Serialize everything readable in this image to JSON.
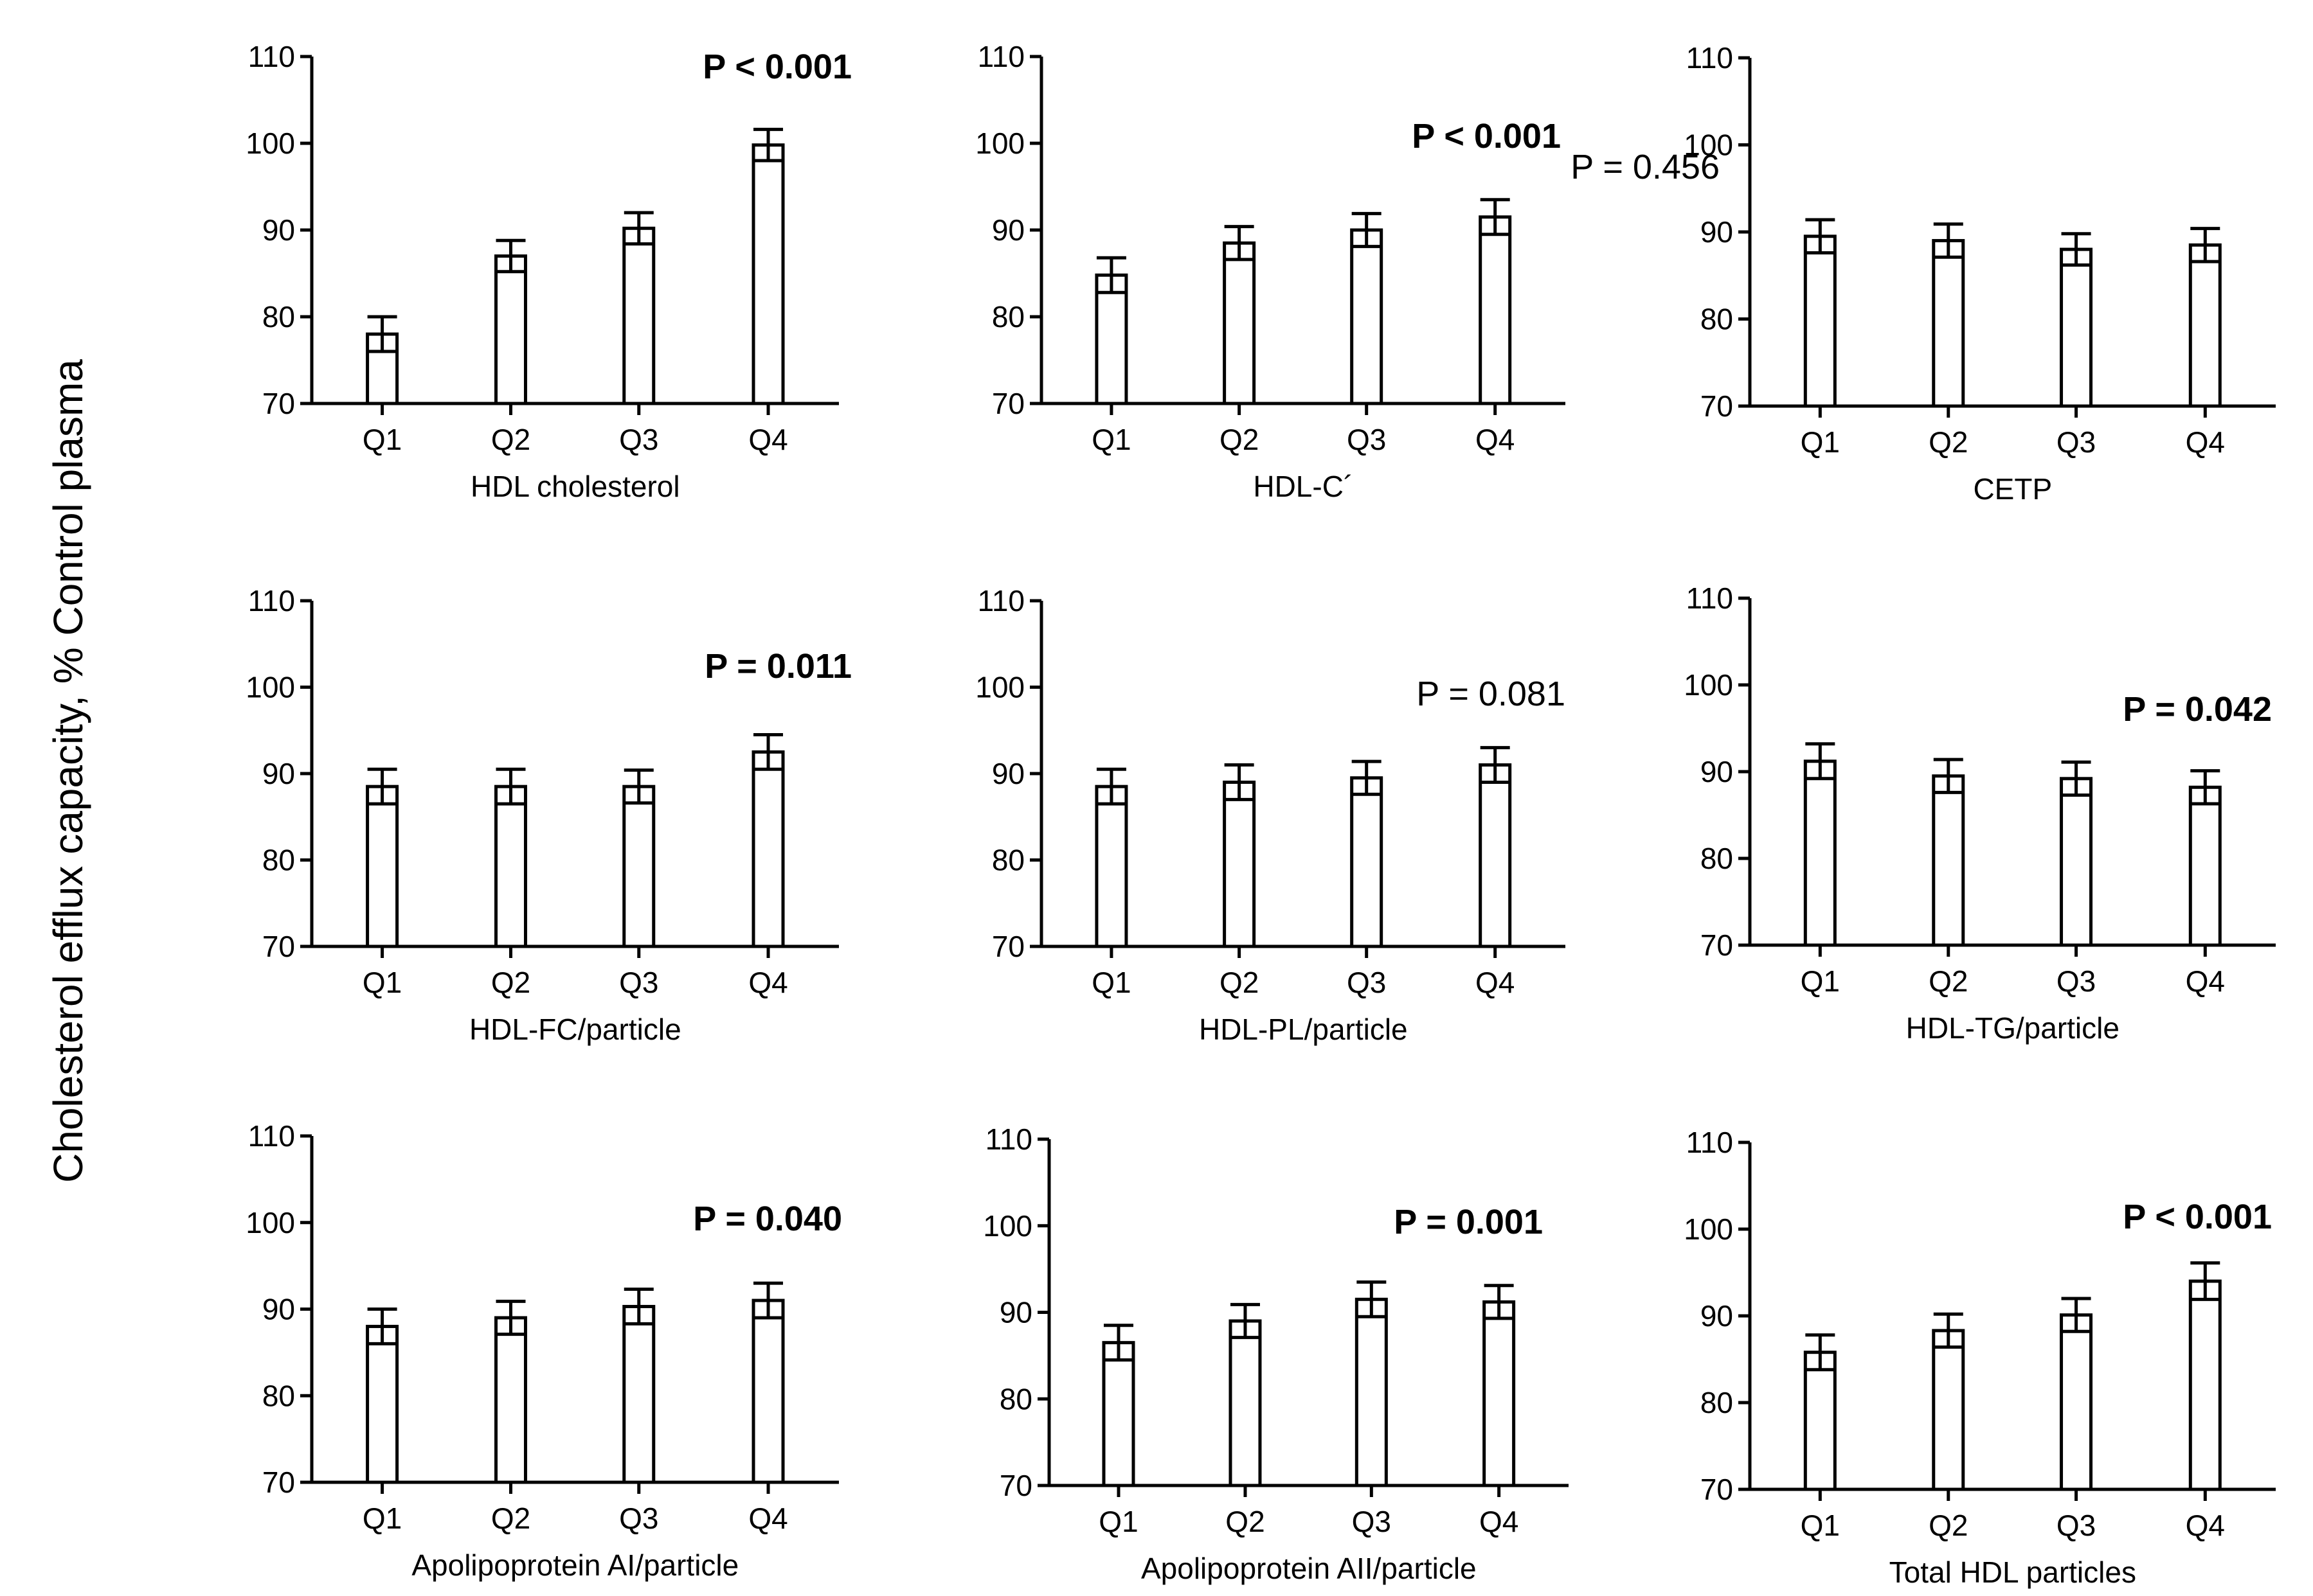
{
  "figure": {
    "ylabel": "Cholesterol efflux capacity, % Control plasma"
  },
  "chart_data": [
    {
      "type": "bar",
      "title": "",
      "xlabel": "HDL cholesterol",
      "ylabel": "",
      "ylim": [
        70,
        110
      ],
      "yticks": [
        70,
        80,
        90,
        100,
        110
      ],
      "categories": [
        "Q1",
        "Q2",
        "Q3",
        "Q4"
      ],
      "values": [
        78,
        87,
        90.2,
        99.8
      ],
      "errors": [
        2.0,
        1.8,
        1.8,
        1.8
      ],
      "annotation": "P < 0.001",
      "annotation_bold": true
    },
    {
      "type": "bar",
      "title": "",
      "xlabel": "HDL-C´",
      "ylabel": "",
      "ylim": [
        70,
        110
      ],
      "yticks": [
        70,
        80,
        90,
        100,
        110
      ],
      "categories": [
        "Q1",
        "Q2",
        "Q3",
        "Q4"
      ],
      "values": [
        84.8,
        88.5,
        90,
        91.5
      ],
      "errors": [
        2.0,
        1.9,
        1.9,
        2.0
      ],
      "annotation": "P < 0.001",
      "annotation_bold": true
    },
    {
      "type": "bar",
      "title": "",
      "xlabel": "CETP",
      "ylabel": "",
      "ylim": [
        70,
        110
      ],
      "yticks": [
        70,
        80,
        90,
        100,
        110
      ],
      "categories": [
        "Q1",
        "Q2",
        "Q3",
        "Q4"
      ],
      "values": [
        89.5,
        89,
        88,
        88.5
      ],
      "errors": [
        1.9,
        1.9,
        1.8,
        1.9
      ],
      "annotation": "P = 0.456",
      "annotation_bold": false
    },
    {
      "type": "bar",
      "title": "",
      "xlabel": "HDL-FC/particle",
      "ylabel": "",
      "ylim": [
        70,
        110
      ],
      "yticks": [
        70,
        80,
        90,
        100,
        110
      ],
      "categories": [
        "Q1",
        "Q2",
        "Q3",
        "Q4"
      ],
      "values": [
        88.5,
        88.5,
        88.5,
        92.5
      ],
      "errors": [
        2.0,
        2.0,
        1.9,
        2.0
      ],
      "annotation": "P = 0.011",
      "annotation_bold": true
    },
    {
      "type": "bar",
      "title": "",
      "xlabel": "HDL-PL/particle",
      "ylabel": "",
      "ylim": [
        70,
        110
      ],
      "yticks": [
        70,
        80,
        90,
        100,
        110
      ],
      "categories": [
        "Q1",
        "Q2",
        "Q3",
        "Q4"
      ],
      "values": [
        88.5,
        89,
        89.5,
        91
      ],
      "errors": [
        2.0,
        2.0,
        1.9,
        2.0
      ],
      "annotation": "P = 0.081",
      "annotation_bold": false
    },
    {
      "type": "bar",
      "title": "",
      "xlabel": "HDL-TG/particle",
      "ylabel": "",
      "ylim": [
        70,
        110
      ],
      "yticks": [
        70,
        80,
        90,
        100,
        110
      ],
      "categories": [
        "Q1",
        "Q2",
        "Q3",
        "Q4"
      ],
      "values": [
        91.2,
        89.5,
        89.2,
        88.2
      ],
      "errors": [
        2.0,
        1.9,
        1.9,
        1.9
      ],
      "annotation": "P = 0.042",
      "annotation_bold": true
    },
    {
      "type": "bar",
      "title": "",
      "xlabel": "Apolipoprotein AI/particle",
      "ylabel": "",
      "ylim": [
        70,
        110
      ],
      "yticks": [
        70,
        80,
        90,
        100,
        110
      ],
      "categories": [
        "Q1",
        "Q2",
        "Q3",
        "Q4"
      ],
      "values": [
        88,
        89,
        90.3,
        91
      ],
      "errors": [
        2.0,
        1.9,
        2.0,
        2.0
      ],
      "annotation": "P = 0.040",
      "annotation_bold": true
    },
    {
      "type": "bar",
      "title": "",
      "xlabel": "Apolipoprotein AII/particle",
      "ylabel": "",
      "ylim": [
        70,
        110
      ],
      "yticks": [
        70,
        80,
        90,
        100,
        110
      ],
      "categories": [
        "Q1",
        "Q2",
        "Q3",
        "Q4"
      ],
      "values": [
        86.5,
        89,
        91.5,
        91.2
      ],
      "errors": [
        2.0,
        1.9,
        2.0,
        1.9
      ],
      "annotation": "P = 0.001",
      "annotation_bold": true
    },
    {
      "type": "bar",
      "title": "",
      "xlabel": "Total HDL particles",
      "ylabel": "",
      "ylim": [
        70,
        110
      ],
      "yticks": [
        70,
        80,
        90,
        100,
        110
      ],
      "categories": [
        "Q1",
        "Q2",
        "Q3",
        "Q4"
      ],
      "values": [
        85.8,
        88.3,
        90.1,
        94
      ],
      "errors": [
        2.0,
        1.9,
        1.9,
        2.1
      ],
      "annotation": "P < 0.001",
      "annotation_bold": true
    }
  ]
}
